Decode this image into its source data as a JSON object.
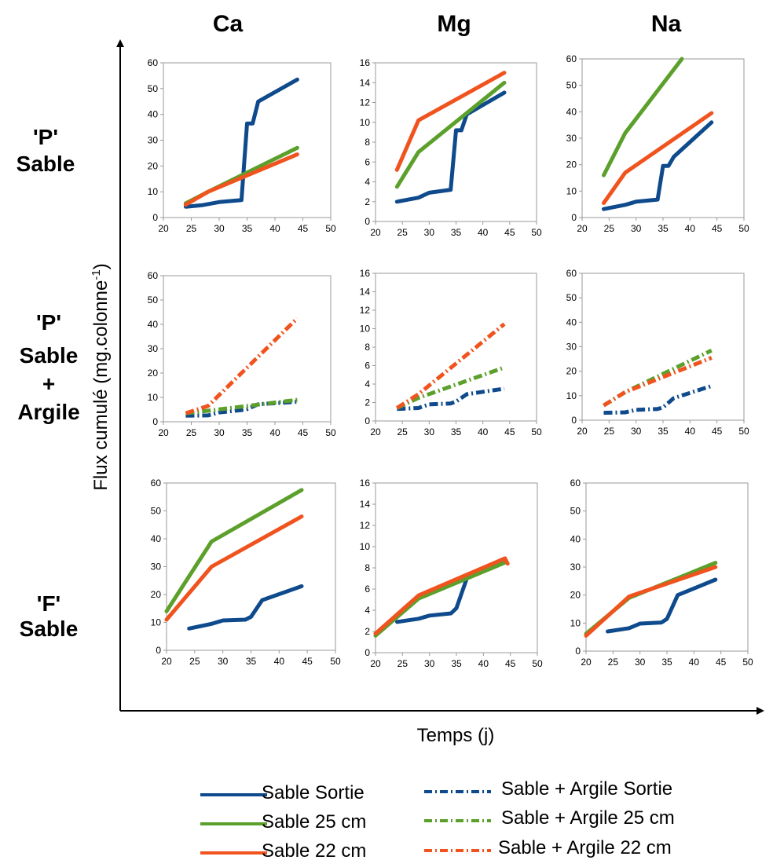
{
  "column_headers": [
    "Ca",
    "Mg",
    "Na"
  ],
  "row_headers": [
    [
      "'P'",
      "Sable"
    ],
    [
      "'P'",
      "Sable",
      "+",
      "Argile"
    ],
    [
      "'F'",
      "Sable"
    ]
  ],
  "y_axis_title": "Flux cumulé (mg.colonne",
  "y_axis_title_sup": "-1",
  "y_axis_title_end": ")",
  "x_axis_title": "Temps (j)",
  "colors": {
    "sortie": "#0e4a8c",
    "cm25": "#5ca02c",
    "cm22": "#f0531e"
  },
  "legend": [
    {
      "label": "Sable Sortie",
      "color": "#0e4a8c",
      "style": "solid"
    },
    {
      "label": "Sable 25 cm",
      "color": "#5ca02c",
      "style": "solid"
    },
    {
      "label": "Sable 22 cm",
      "color": "#f0531e",
      "style": "solid"
    },
    {
      "label": "Sable + Argile Sortie",
      "color": "#0e4a8c",
      "style": "dashdot"
    },
    {
      "label": "Sable + Argile 25 cm",
      "color": "#5ca02c",
      "style": "dashdot"
    },
    {
      "label": "Sable + Argile 22 cm",
      "color": "#f0531e",
      "style": "dashdot"
    }
  ],
  "chart_data": [
    {
      "type": "line",
      "ion": "Ca",
      "treatment": "'P' Sable",
      "style": "solid",
      "xlim": [
        20,
        50
      ],
      "ylim": [
        0,
        60
      ],
      "xticks": [
        20,
        25,
        30,
        35,
        40,
        45,
        50
      ],
      "yticks": [
        0,
        10,
        20,
        30,
        40,
        50,
        60
      ],
      "series": [
        {
          "name": "Sable Sortie",
          "color": "#0e4a8c",
          "x": [
            24,
            27,
            30,
            34,
            35,
            36,
            37,
            44
          ],
          "y": [
            4.2,
            4.8,
            6,
            6.8,
            36.5,
            36.5,
            45,
            53.5
          ]
        },
        {
          "name": "Sable 25 cm",
          "color": "#5ca02c",
          "x": [
            24,
            28,
            44
          ],
          "y": [
            5.5,
            10,
            27
          ]
        },
        {
          "name": "Sable 22 cm",
          "color": "#f0531e",
          "x": [
            24,
            28,
            44
          ],
          "y": [
            5,
            10,
            24.5
          ]
        }
      ]
    },
    {
      "type": "line",
      "ion": "Mg",
      "treatment": "'P' Sable",
      "style": "solid",
      "xlim": [
        20,
        50
      ],
      "ylim": [
        0,
        16
      ],
      "xticks": [
        20,
        25,
        30,
        35,
        40,
        45,
        50
      ],
      "yticks": [
        0,
        2,
        4,
        6,
        8,
        10,
        12,
        14,
        16
      ],
      "series": [
        {
          "name": "Sable Sortie",
          "color": "#0e4a8c",
          "x": [
            24,
            28,
            30,
            34,
            35,
            36,
            37,
            44
          ],
          "y": [
            2,
            2.4,
            2.9,
            3.2,
            9.2,
            9.2,
            10.8,
            13
          ]
        },
        {
          "name": "Sable 25 cm",
          "color": "#5ca02c",
          "x": [
            24,
            28,
            44
          ],
          "y": [
            3.5,
            7,
            14
          ]
        },
        {
          "name": "Sable 22 cm",
          "color": "#f0531e",
          "x": [
            24,
            28,
            44
          ],
          "y": [
            5.2,
            10.2,
            15
          ]
        }
      ]
    },
    {
      "type": "line",
      "ion": "Na",
      "treatment": "'P' Sable",
      "style": "solid",
      "xlim": [
        20,
        50
      ],
      "ylim": [
        0,
        60
      ],
      "xticks": [
        20,
        25,
        30,
        35,
        40,
        45,
        50
      ],
      "yticks": [
        0,
        10,
        20,
        30,
        40,
        50,
        60
      ],
      "series": [
        {
          "name": "Sable Sortie",
          "color": "#0e4a8c",
          "x": [
            24,
            28,
            30,
            34,
            35,
            36,
            37,
            44
          ],
          "y": [
            3.2,
            4.8,
            6,
            6.8,
            19.5,
            19.5,
            23,
            36
          ]
        },
        {
          "name": "Sable 25 cm",
          "color": "#5ca02c",
          "x": [
            24,
            28,
            38.5
          ],
          "y": [
            16,
            32,
            60
          ]
        },
        {
          "name": "Sable 22 cm",
          "color": "#f0531e",
          "x": [
            24,
            28,
            44
          ],
          "y": [
            5.5,
            17,
            39.5
          ]
        }
      ]
    },
    {
      "type": "line",
      "ion": "Ca",
      "treatment": "'P' Sable + Argile",
      "style": "dashdot",
      "xlim": [
        20,
        50
      ],
      "ylim": [
        0,
        60
      ],
      "xticks": [
        20,
        25,
        30,
        35,
        40,
        45,
        50
      ],
      "yticks": [
        0,
        10,
        20,
        30,
        40,
        50,
        60
      ],
      "series": [
        {
          "name": "Sable + Argile Sortie",
          "color": "#0e4a8c",
          "x": [
            24,
            28,
            30,
            34,
            35,
            37,
            44
          ],
          "y": [
            2.5,
            2.6,
            3.8,
            4.8,
            5.2,
            7.2,
            8.2
          ]
        },
        {
          "name": "Sable + Argile 25 cm",
          "color": "#5ca02c",
          "x": [
            24,
            28,
            44
          ],
          "y": [
            3.5,
            4.5,
            9
          ]
        },
        {
          "name": "Sable + Argile 22 cm",
          "color": "#f0531e",
          "x": [
            24,
            28,
            44
          ],
          "y": [
            3.5,
            6.5,
            42.5
          ]
        }
      ]
    },
    {
      "type": "line",
      "ion": "Mg",
      "treatment": "'P' Sable + Argile",
      "style": "dashdot",
      "xlim": [
        20,
        50
      ],
      "ylim": [
        0,
        16
      ],
      "xticks": [
        20,
        25,
        30,
        35,
        40,
        45,
        50
      ],
      "yticks": [
        0,
        2,
        4,
        6,
        8,
        10,
        12,
        14,
        16
      ],
      "series": [
        {
          "name": "Sable + Argile Sortie",
          "color": "#0e4a8c",
          "x": [
            24,
            28,
            30,
            34,
            35,
            37,
            44
          ],
          "y": [
            1.3,
            1.4,
            1.8,
            1.9,
            2.1,
            2.9,
            3.5
          ]
        },
        {
          "name": "Sable + Argile 25 cm",
          "color": "#5ca02c",
          "x": [
            24,
            28,
            44
          ],
          "y": [
            1.4,
            2.5,
            5.8
          ]
        },
        {
          "name": "Sable + Argile 22 cm",
          "color": "#f0531e",
          "x": [
            24,
            28,
            44
          ],
          "y": [
            1.4,
            2.9,
            10.5
          ]
        }
      ]
    },
    {
      "type": "line",
      "ion": "Na",
      "treatment": "'P' Sable + Argile",
      "style": "dashdot",
      "xlim": [
        20,
        50
      ],
      "ylim": [
        0,
        60
      ],
      "xticks": [
        20,
        25,
        30,
        35,
        40,
        45,
        50
      ],
      "yticks": [
        0,
        10,
        20,
        30,
        40,
        50,
        60
      ],
      "series": [
        {
          "name": "Sable + Argile Sortie",
          "color": "#0e4a8c",
          "x": [
            24,
            28,
            30,
            34,
            35,
            37,
            44
          ],
          "y": [
            3,
            3.2,
            4.2,
            4.6,
            5.2,
            9,
            14
          ]
        },
        {
          "name": "Sable + Argile 25 cm",
          "color": "#5ca02c",
          "x": [
            24,
            28,
            44
          ],
          "y": [
            6,
            11.5,
            28.5
          ]
        },
        {
          "name": "Sable + Argile 22 cm",
          "color": "#f0531e",
          "x": [
            24,
            28,
            44
          ],
          "y": [
            6,
            11.5,
            25.5
          ]
        }
      ]
    },
    {
      "type": "line",
      "ion": "Ca",
      "treatment": "'F' Sable",
      "style": "solid",
      "xlim": [
        20,
        50
      ],
      "ylim": [
        0,
        60
      ],
      "xticks": [
        20,
        25,
        30,
        35,
        40,
        45,
        50
      ],
      "yticks": [
        0,
        10,
        20,
        30,
        40,
        50,
        60
      ],
      "series": [
        {
          "name": "Sable Sortie",
          "color": "#0e4a8c",
          "x": [
            24,
            28,
            30,
            34,
            35,
            37,
            44
          ],
          "y": [
            7.8,
            9.5,
            10.7,
            11,
            12,
            18,
            23
          ]
        },
        {
          "name": "Sable 25 cm",
          "color": "#5ca02c",
          "x": [
            20,
            28,
            44
          ],
          "y": [
            14,
            39,
            57.5
          ]
        },
        {
          "name": "Sable 22 cm",
          "color": "#f0531e",
          "x": [
            20,
            28,
            44
          ],
          "y": [
            11,
            30,
            48
          ]
        }
      ]
    },
    {
      "type": "line",
      "ion": "Mg",
      "treatment": "'F' Sable",
      "style": "solid",
      "xlim": [
        20,
        50
      ],
      "ylim": [
        0,
        16
      ],
      "xticks": [
        20,
        25,
        30,
        35,
        40,
        45,
        50
      ],
      "yticks": [
        0,
        2,
        4,
        6,
        8,
        10,
        12,
        14,
        16
      ],
      "series": [
        {
          "name": "Sable Sortie",
          "color": "#0e4a8c",
          "x": [
            24,
            28,
            30,
            34,
            35,
            37,
            44
          ],
          "y": [
            2.9,
            3.2,
            3.5,
            3.7,
            4.2,
            7.1,
            8.8
          ]
        },
        {
          "name": "Sable 25 cm",
          "color": "#5ca02c",
          "x": [
            20,
            28,
            44
          ],
          "y": [
            1.6,
            5.1,
            8.5
          ]
        },
        {
          "name": "Sable 22 cm",
          "color": "#f0531e",
          "x": [
            20,
            28,
            44,
            44.5
          ],
          "y": [
            1.8,
            5.4,
            8.9,
            8.4
          ]
        }
      ]
    },
    {
      "type": "line",
      "ion": "Na",
      "treatment": "'F' Sable",
      "style": "solid",
      "xlim": [
        20,
        50
      ],
      "ylim": [
        0,
        60
      ],
      "xticks": [
        20,
        25,
        30,
        35,
        40,
        45,
        50
      ],
      "yticks": [
        0,
        10,
        20,
        30,
        40,
        50,
        60
      ],
      "series": [
        {
          "name": "Sable Sortie",
          "color": "#0e4a8c",
          "x": [
            24,
            28,
            30,
            34,
            35,
            37,
            44
          ],
          "y": [
            7,
            8.2,
            9.8,
            10.2,
            11.5,
            20,
            25.5
          ]
        },
        {
          "name": "Sable 25 cm",
          "color": "#5ca02c",
          "x": [
            20,
            28,
            44
          ],
          "y": [
            6.2,
            19,
            31.5
          ]
        },
        {
          "name": "Sable 22 cm",
          "color": "#f0531e",
          "x": [
            20,
            28,
            44
          ],
          "y": [
            5.5,
            19.5,
            30
          ]
        }
      ]
    }
  ]
}
